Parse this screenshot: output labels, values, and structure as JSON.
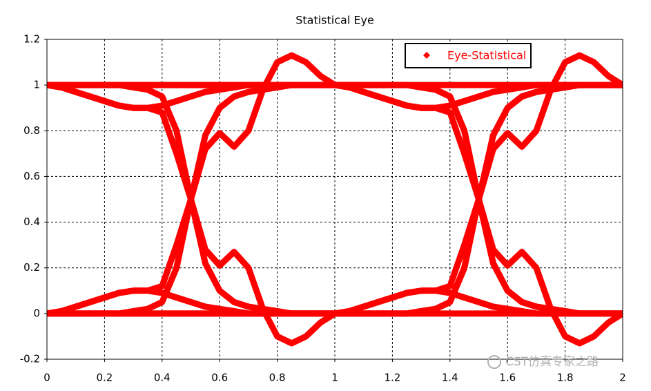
{
  "chart_data": {
    "type": "eye",
    "title": "Statistical Eye",
    "annotation": "CST仿真专家之路",
    "x": [
      0,
      0.05,
      0.1,
      0.15,
      0.2,
      0.25,
      0.3,
      0.35,
      0.4,
      0.45,
      0.5,
      0.55,
      0.6,
      0.65,
      0.7,
      0.75,
      0.8,
      0.85,
      0.9,
      0.95,
      1,
      1.05,
      1.1,
      1.15,
      1.2,
      1.25,
      1.3,
      1.35,
      1.4,
      1.45,
      1.5,
      1.55,
      1.6,
      1.65,
      1.7,
      1.75,
      1.8,
      1.85,
      1.9,
      1.95,
      2
    ],
    "series": [
      {
        "name": "Eye-Statistical",
        "color": "#ff0000",
        "traces": [
          [
            1,
            1,
            1,
            1,
            1,
            1,
            1,
            1,
            1,
            1,
            1,
            1,
            1,
            1,
            1,
            1,
            1,
            1,
            1,
            1,
            1,
            1,
            1,
            1,
            1,
            1,
            1,
            1,
            1,
            1,
            1,
            1,
            1,
            1,
            1,
            1,
            1,
            1,
            1,
            1,
            1
          ],
          [
            0,
            0,
            0,
            0,
            0,
            0,
            0,
            0,
            0,
            0,
            0,
            0,
            0,
            0,
            0,
            0,
            0,
            0,
            0,
            0,
            0,
            0,
            0,
            0,
            0,
            0,
            0,
            0,
            0,
            0,
            0,
            0,
            0,
            0,
            0,
            0,
            0,
            0,
            0,
            0,
            0
          ],
          [
            0,
            0.01,
            0.03,
            0.05,
            0.07,
            0.09,
            0.1,
            0.1,
            0.12,
            0.3,
            0.5,
            0.72,
            0.79,
            0.73,
            0.8,
            0.98,
            1.1,
            1.13,
            1.1,
            1.04,
            1,
            0.99,
            0.97,
            0.95,
            0.93,
            0.91,
            0.9,
            0.9,
            0.88,
            0.7,
            0.5,
            0.28,
            0.21,
            0.27,
            0.2,
            0.02,
            -0.1,
            -0.13,
            -0.1,
            -0.04,
            0
          ],
          [
            1,
            0.99,
            0.97,
            0.95,
            0.93,
            0.91,
            0.9,
            0.9,
            0.88,
            0.7,
            0.5,
            0.28,
            0.21,
            0.27,
            0.2,
            0.02,
            -0.1,
            -0.13,
            -0.1,
            -0.04,
            0,
            0.01,
            0.03,
            0.05,
            0.07,
            0.09,
            0.1,
            0.1,
            0.12,
            0.3,
            0.5,
            0.72,
            0.79,
            0.73,
            0.8,
            0.98,
            1.1,
            1.13,
            1.1,
            1.04,
            1
          ],
          [
            0,
            0,
            0,
            0,
            0,
            0,
            0.01,
            0.02,
            0.05,
            0.2,
            0.5,
            0.78,
            0.9,
            0.95,
            0.97,
            0.98,
            0.99,
            1,
            1,
            1,
            1,
            1,
            1,
            1,
            1,
            1,
            0.99,
            0.98,
            0.95,
            0.8,
            0.5,
            0.22,
            0.1,
            0.05,
            0.03,
            0.02,
            0.01,
            0,
            0,
            0,
            0
          ],
          [
            1,
            1,
            1,
            1,
            1,
            1,
            0.99,
            0.98,
            0.95,
            0.8,
            0.5,
            0.22,
            0.1,
            0.05,
            0.03,
            0.02,
            0.01,
            0,
            0,
            0,
            0,
            0,
            0,
            0,
            0,
            0,
            0.01,
            0.02,
            0.05,
            0.2,
            0.5,
            0.78,
            0.9,
            0.95,
            0.97,
            0.98,
            0.99,
            1,
            1,
            1,
            1
          ],
          [
            1,
            0.99,
            0.97,
            0.95,
            0.93,
            0.91,
            0.9,
            0.9,
            0.91,
            0.93,
            0.95,
            0.97,
            0.98,
            0.99,
            1,
            1,
            1,
            1,
            1,
            1,
            1,
            0.99,
            0.97,
            0.95,
            0.93,
            0.91,
            0.9,
            0.9,
            0.91,
            0.93,
            0.95,
            0.97,
            0.98,
            0.99,
            1,
            1,
            1,
            1,
            1,
            1,
            1
          ],
          [
            0,
            0.01,
            0.03,
            0.05,
            0.07,
            0.09,
            0.1,
            0.1,
            0.09,
            0.07,
            0.05,
            0.03,
            0.02,
            0.01,
            0,
            0,
            0,
            0,
            0,
            0,
            0,
            0.01,
            0.03,
            0.05,
            0.07,
            0.09,
            0.1,
            0.1,
            0.09,
            0.07,
            0.05,
            0.03,
            0.02,
            0.01,
            0,
            0,
            0,
            0,
            0,
            0,
            0
          ],
          [
            0,
            0,
            0,
            0,
            0,
            0,
            0,
            0,
            0,
            0,
            0,
            0,
            0,
            0,
            0,
            0,
            0,
            0,
            0,
            0,
            0,
            0,
            0,
            0,
            0,
            0,
            0.01,
            0.02,
            0.05,
            0.2,
            0.5,
            0.78,
            0.9,
            0.95,
            0.97,
            0.98,
            0.99,
            1,
            1,
            1,
            1
          ],
          [
            1,
            1,
            1,
            1,
            1,
            1,
            1,
            1,
            1,
            1,
            1,
            1,
            1,
            1,
            1,
            1,
            1,
            1,
            1,
            1,
            1,
            1,
            1,
            1,
            1,
            1,
            0.99,
            0.98,
            0.95,
            0.8,
            0.5,
            0.22,
            0.1,
            0.05,
            0.03,
            0.02,
            0.01,
            0,
            0,
            0,
            0
          ]
        ]
      }
    ],
    "xlim": [
      0,
      2
    ],
    "xticks": [
      0,
      0.2,
      0.4,
      0.6,
      0.8,
      1,
      1.2,
      1.4,
      1.6,
      1.8,
      2
    ],
    "ylim": [
      -0.2,
      1.2
    ],
    "yticks": [
      -0.2,
      0,
      0.2,
      0.4,
      0.6,
      0.8,
      1,
      1.2
    ],
    "grid": true,
    "legend": "upper right"
  }
}
